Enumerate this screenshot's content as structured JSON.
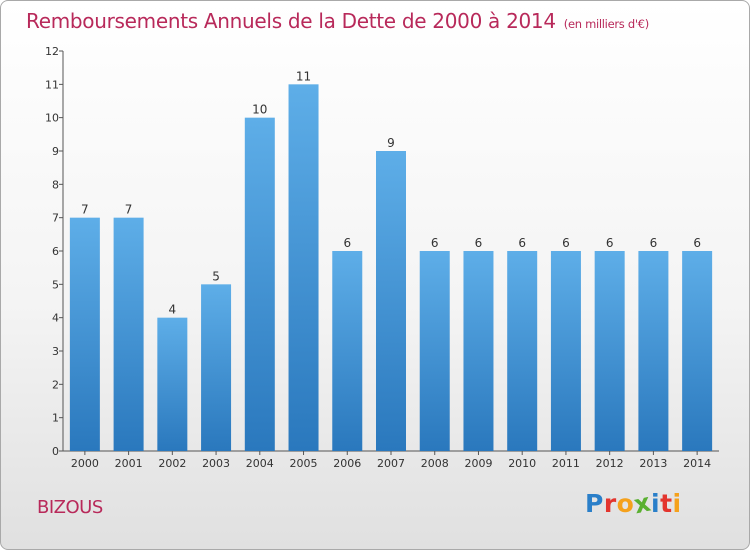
{
  "header": {
    "title": "Remboursements Annuels de la Dette de 2000 à 2014",
    "unit_note": "(en milliers d'€)"
  },
  "footer": {
    "commune": "BIZOUS",
    "brand_letters": [
      "P",
      "r",
      "o",
      "x",
      "i",
      "t",
      "i"
    ],
    "brand_colors": [
      "#2a7fc9",
      "#e3352e",
      "#f5a11c",
      "#5ab031",
      "#2a7fc9",
      "#e3352e",
      "#f5a11c"
    ]
  },
  "chart_data": {
    "type": "bar",
    "title": "Remboursements Annuels de la Dette de 2000 à 2014",
    "subtitle": "(en milliers d'€)",
    "xlabel": "",
    "ylabel": "",
    "categories": [
      "2000",
      "2001",
      "2002",
      "2003",
      "2004",
      "2005",
      "2006",
      "2007",
      "2008",
      "2009",
      "2010",
      "2011",
      "2012",
      "2013",
      "2014"
    ],
    "values": [
      7,
      7,
      4,
      5,
      10,
      11,
      6,
      9,
      6,
      6,
      6,
      6,
      6,
      6,
      6
    ],
    "data_labels": [
      "7",
      "7",
      "4",
      "5",
      "10",
      "11",
      "6",
      "9",
      "6",
      "6",
      "6",
      "6",
      "6",
      "6",
      "6"
    ],
    "ylim": [
      0,
      12
    ],
    "yticks": [
      "0",
      "1",
      "2",
      "3",
      "4",
      "5",
      "6",
      "7",
      "8",
      "9",
      "10",
      "11",
      "12"
    ],
    "grid": false,
    "bar_color_top": "#5eaee8",
    "bar_color_bottom": "#2a78bd"
  }
}
